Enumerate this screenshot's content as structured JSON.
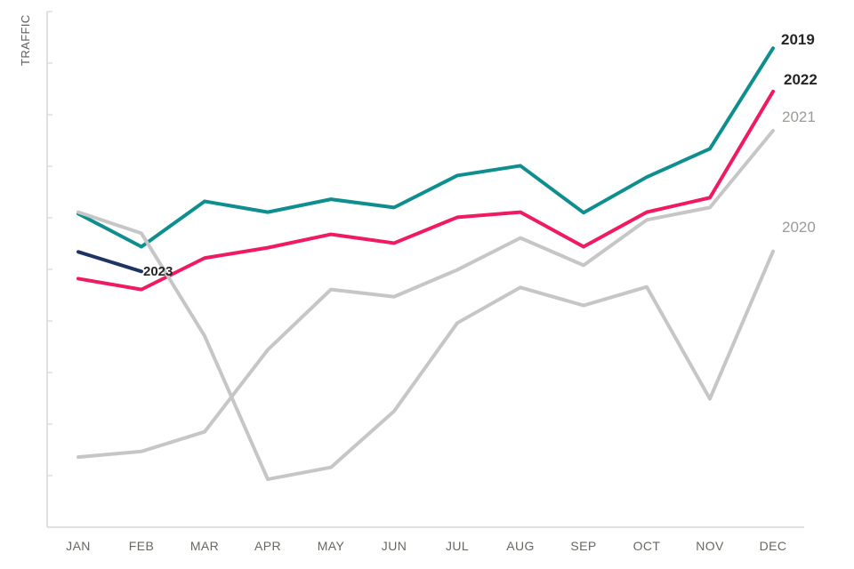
{
  "chart_data": {
    "type": "line",
    "title": "",
    "ylabel": "TRAFFIC",
    "xlabel": "",
    "categories": [
      "JAN",
      "FEB",
      "MAR",
      "APR",
      "MAY",
      "JUN",
      "JUL",
      "AUG",
      "SEP",
      "OCT",
      "NOV",
      "DEC"
    ],
    "y_axis": {
      "tick_labels_visible": false,
      "range": [
        0,
        100
      ],
      "tick_step": 10,
      "grid": false
    },
    "legend_position": "inline-end-of-line-labels",
    "series": [
      {
        "name": "2019",
        "color": "#0e8e8e",
        "label_style": "bold-dark",
        "values": [
          60.8,
          54.4,
          63.2,
          61.1,
          63.6,
          62.0,
          68.2,
          70.1,
          61.0,
          67.9,
          73.4,
          92.9
        ]
      },
      {
        "name": "2022",
        "color": "#f01a62",
        "label_style": "bold-dark",
        "values": [
          48.2,
          46.1,
          52.2,
          54.2,
          56.8,
          55.1,
          60.1,
          61.1,
          54.4,
          61.1,
          63.9,
          84.5
        ]
      },
      {
        "name": "2023",
        "color": "#1e3563",
        "label_style": "bold-dark",
        "values": [
          53.4,
          49.6,
          null,
          null,
          null,
          null,
          null,
          null,
          null,
          null,
          null,
          null
        ]
      },
      {
        "name": "2021",
        "color": "#c6c6c6",
        "label_style": "gray",
        "values": [
          13.6,
          14.7,
          18.5,
          34.4,
          46.1,
          44.7,
          49.9,
          56.1,
          50.8,
          59.6,
          62.0,
          76.9
        ]
      },
      {
        "name": "2020",
        "color": "#c6c6c6",
        "label_style": "gray",
        "values": [
          61.1,
          57.0,
          37.1,
          9.3,
          11.6,
          22.5,
          39.6,
          46.5,
          43.0,
          46.6,
          24.9,
          53.5
        ]
      }
    ],
    "axis_color": "#d6d6d6",
    "month_label_color": "#6a6763",
    "units": "unlabeled traffic index, 0-100 scale estimated from 10 equal tick intervals"
  }
}
